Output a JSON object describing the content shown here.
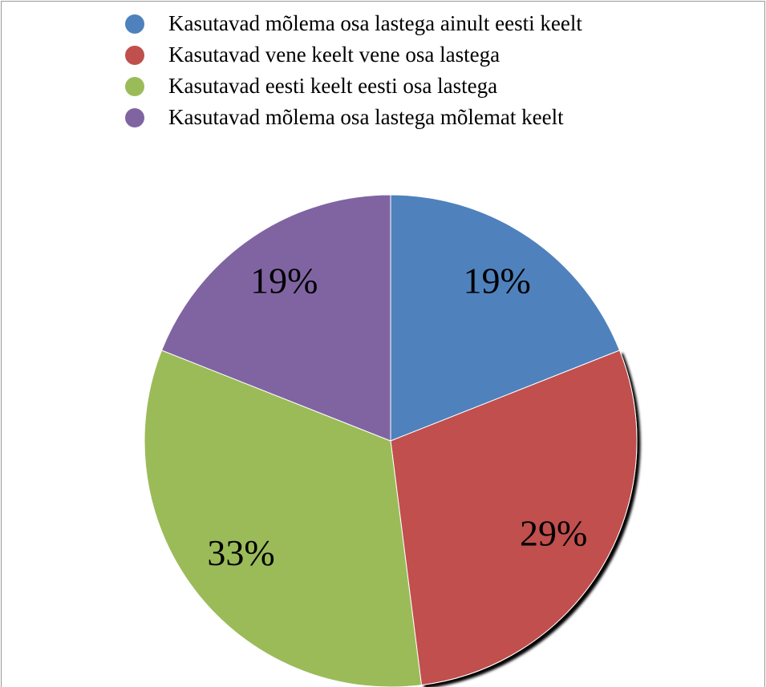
{
  "chart_data": {
    "type": "pie",
    "categories": [
      "Kasutavad mõlema osa lastega ainult eesti keelt",
      "Kasutavad vene keelt vene osa lastega",
      "Kasutavad eesti keelt eesti osa lastega",
      "Kasutavad mõlema osa lastega mõlemat keelt"
    ],
    "values": [
      19,
      29,
      33,
      19
    ],
    "value_labels": [
      "19%",
      "29%",
      "33%",
      "19%"
    ],
    "colors": [
      "#4f81bd",
      "#c0504d",
      "#9bbb59",
      "#8064a2"
    ],
    "legend": "top"
  }
}
